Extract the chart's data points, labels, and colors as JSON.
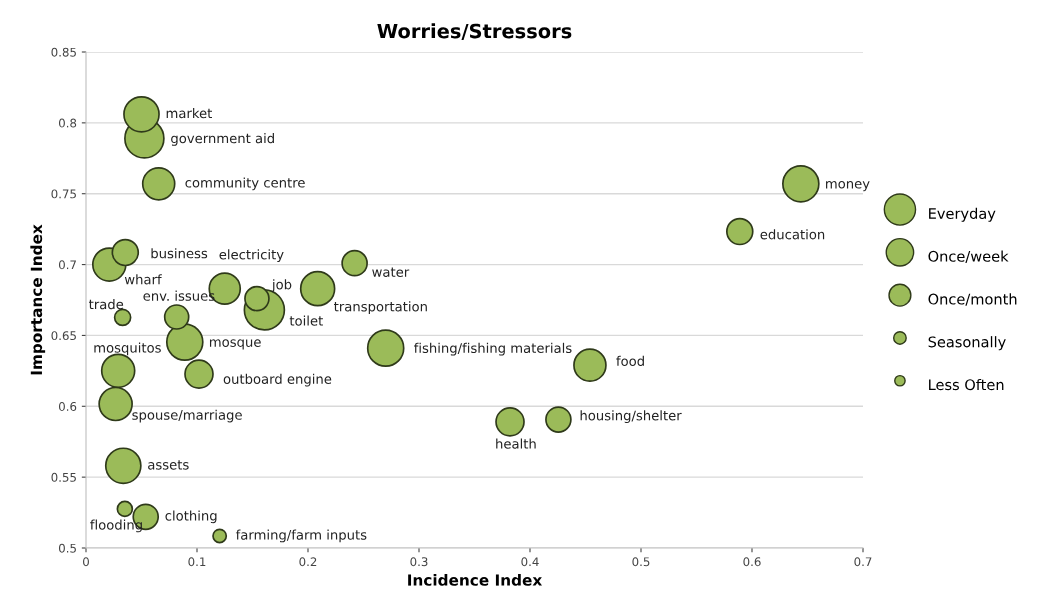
{
  "chart_data": {
    "type": "bubble",
    "title": "Worries/Stressors",
    "xlabel": "Incidence Index",
    "ylabel": "Importance Index",
    "xlim": [
      0,
      0.7
    ],
    "xticks": [
      0,
      0.1,
      0.2,
      0.3,
      0.4,
      0.5,
      0.6,
      0.7
    ],
    "ylim": [
      0.5,
      0.85
    ],
    "yticks": [
      0.5,
      0.55,
      0.6,
      0.65,
      0.7,
      0.75,
      0.8,
      0.85
    ],
    "grid": "y",
    "legend": "right",
    "series": [
      {
        "name": "Everyday",
        "color": "#9bbb59",
        "x": [
          0.1607,
          0.0526,
          0.089,
          0.27,
          0.644
        ],
        "values": [
          0.668,
          0.789,
          0.6453,
          0.641,
          0.757
        ],
        "sizes": [
          1,
          0.95,
          0.81,
          0.81,
          0.81
        ]
      },
      {
        "name": "Once/week",
        "color": "#9bbb59",
        "x": [
          0.05,
          0.0336,
          0.2087,
          0.021,
          0.029,
          0.0267,
          0.0655,
          0.454,
          0.125
        ],
        "values": [
          0.806,
          0.558,
          0.683,
          0.7,
          0.625,
          0.6016,
          0.757,
          0.629,
          0.683
        ],
        "sizes": [
          0.77,
          0.77,
          0.72,
          0.68,
          0.68,
          0.68,
          0.64,
          0.64,
          0.6
        ]
      },
      {
        "name": "Once/month",
        "color": "#9bbb59",
        "x": [
          0.1018,
          0.382,
          0.589,
          0.0354,
          0.242,
          0.4256,
          0.0538,
          0.0817,
          0.154
        ],
        "values": [
          0.6227,
          0.589,
          0.7233,
          0.7085,
          0.701,
          0.5906,
          0.522,
          0.663,
          0.676
        ],
        "sizes": [
          0.49,
          0.49,
          0.42,
          0.42,
          0.39,
          0.39,
          0.39,
          0.36,
          0.36
        ]
      },
      {
        "name": "Seasonally",
        "color": "#9bbb59",
        "x": [
          0.033,
          0.035
        ],
        "values": [
          0.6627,
          0.5276
        ],
        "sizes": [
          0.16,
          0.14
        ]
      },
      {
        "name": "Less Often",
        "color": "#9bbb59",
        "x": [
          0.1204
        ],
        "values": [
          0.5085
        ],
        "sizes": [
          0.11
        ]
      }
    ],
    "annotations": [
      {
        "text": "market",
        "x": 0.05,
        "y": 0.806
      },
      {
        "text": "government aid",
        "x": 0.0526,
        "y": 0.789
      },
      {
        "text": "community centre",
        "x": 0.0655,
        "y": 0.757
      },
      {
        "text": "business",
        "x": 0.0354,
        "y": 0.7085
      },
      {
        "text": "electricity",
        "x": 0.125,
        "y": 0.683
      },
      {
        "text": "wharf",
        "x": 0.021,
        "y": 0.7
      },
      {
        "text": "water",
        "x": 0.242,
        "y": 0.701
      },
      {
        "text": "job",
        "x": 0.154,
        "y": 0.676
      },
      {
        "text": "transportation",
        "x": 0.2087,
        "y": 0.683
      },
      {
        "text": "env. issues",
        "x": 0.0817,
        "y": 0.663
      },
      {
        "text": "trade",
        "x": 0.033,
        "y": 0.6627
      },
      {
        "text": "toilet",
        "x": 0.1607,
        "y": 0.668
      },
      {
        "text": "mosque",
        "x": 0.089,
        "y": 0.6453
      },
      {
        "text": "fishing/fishing materials",
        "x": 0.27,
        "y": 0.641
      },
      {
        "text": "mosquitos",
        "x": 0.029,
        "y": 0.625
      },
      {
        "text": "outboard engine",
        "x": 0.1018,
        "y": 0.6227
      },
      {
        "text": "spouse/marriage",
        "x": 0.0267,
        "y": 0.6016
      },
      {
        "text": "assets",
        "x": 0.0336,
        "y": 0.558
      },
      {
        "text": "clothing",
        "x": 0.0538,
        "y": 0.522
      },
      {
        "text": "flooding",
        "x": 0.035,
        "y": 0.5276
      },
      {
        "text": "farming/farm inputs",
        "x": 0.1204,
        "y": 0.5085
      },
      {
        "text": "money",
        "x": 0.644,
        "y": 0.757
      },
      {
        "text": "education",
        "x": 0.589,
        "y": 0.7233
      },
      {
        "text": "food",
        "x": 0.454,
        "y": 0.629
      },
      {
        "text": "housing/shelter",
        "x": 0.4256,
        "y": 0.5906
      },
      {
        "text": "health",
        "x": 0.382,
        "y": 0.589
      }
    ]
  }
}
